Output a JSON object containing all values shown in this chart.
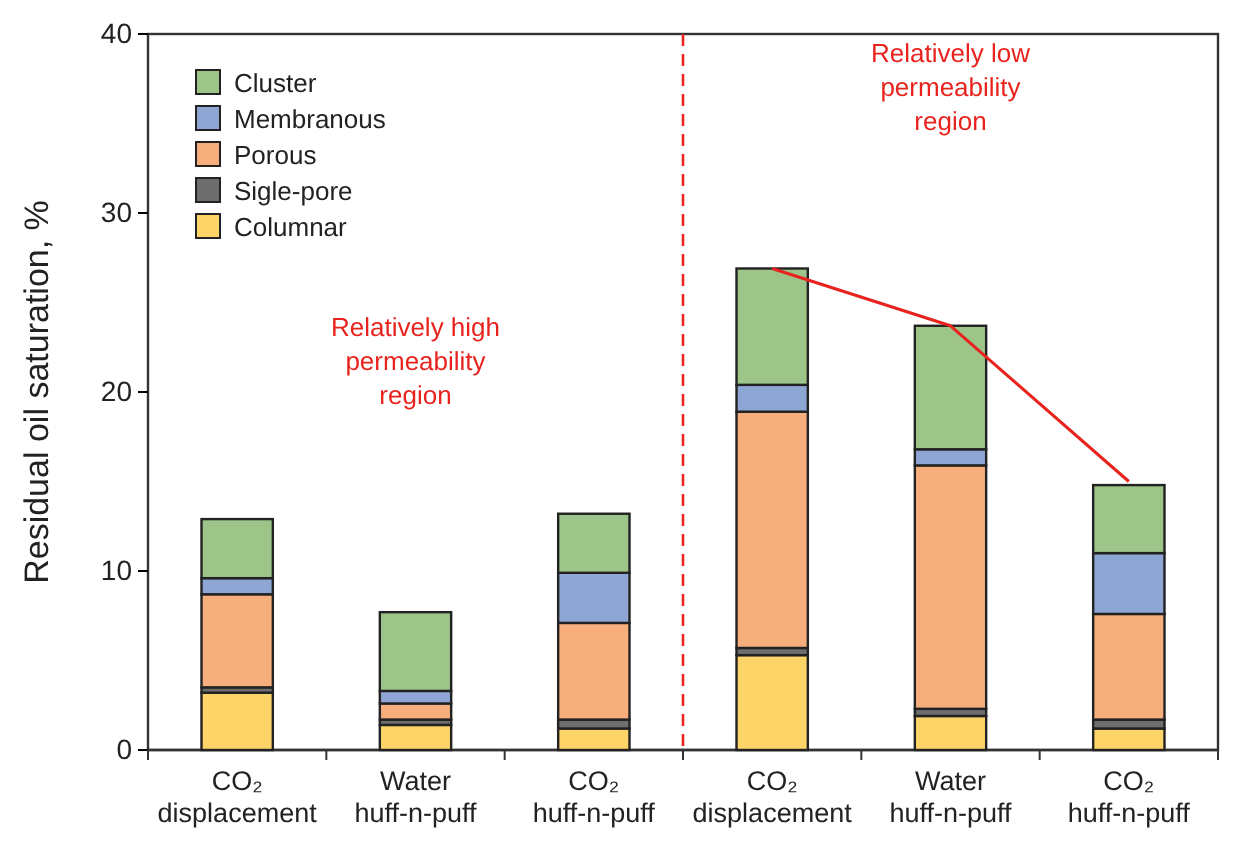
{
  "chart_data": {
    "type": "bar",
    "stacked": true,
    "ylabel": "Residual oil saturation, %",
    "categories": [
      "CO₂ displacement",
      "Water huff-n-puff",
      "CO₂ huff-n-puff",
      "CO₂ displacement",
      "Water huff-n-puff",
      "CO₂ huff-n-puff"
    ],
    "series": [
      {
        "name": "Columnar",
        "color": "#fdd468",
        "values": [
          3.2,
          1.4,
          1.2,
          5.3,
          1.9,
          1.2
        ]
      },
      {
        "name": "Sigle-pore",
        "color": "#6e6e6e",
        "values": [
          0.3,
          0.3,
          0.5,
          0.4,
          0.4,
          0.5
        ]
      },
      {
        "name": "Porous",
        "color": "#f5ae7c",
        "values": [
          5.2,
          0.9,
          5.4,
          13.2,
          13.6,
          5.9
        ]
      },
      {
        "name": "Membranous",
        "color": "#8ea6d4",
        "values": [
          0.9,
          0.7,
          2.8,
          1.5,
          0.9,
          3.4
        ]
      },
      {
        "name": "Cluster",
        "color": "#9dc58a",
        "values": [
          3.3,
          4.4,
          3.3,
          6.5,
          6.9,
          3.8
        ]
      },
      {
        "type": "line",
        "color": "#e8231e",
        "values": [
          null,
          null,
          null,
          26.9,
          23.7,
          15.0
        ]
      }
    ],
    "ylim": [
      0,
      40
    ],
    "yticks": [
      0,
      10,
      20,
      30,
      40
    ],
    "grid": false,
    "legend": "top left",
    "annotations": [
      "Relatively high permeability region",
      "Relatively low permeability region"
    ]
  }
}
